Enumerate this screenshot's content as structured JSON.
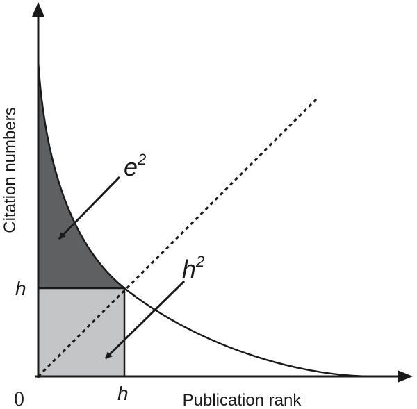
{
  "diagram": {
    "y_axis_label": "Citation numbers",
    "x_axis_label": "Publication rank",
    "origin_label": "0",
    "h_tick_y": "h",
    "h_tick_x": "h",
    "e_area": {
      "base": "e",
      "exponent": "2"
    },
    "h_area": {
      "base": "h",
      "exponent": "2"
    },
    "colors": {
      "axis": "#1a1a1a",
      "curve": "#1a1a1a",
      "e_region_fill": "#5f6062",
      "h_region_fill": "#c4c5c7",
      "diagonal": "#1a1a1a"
    }
  }
}
